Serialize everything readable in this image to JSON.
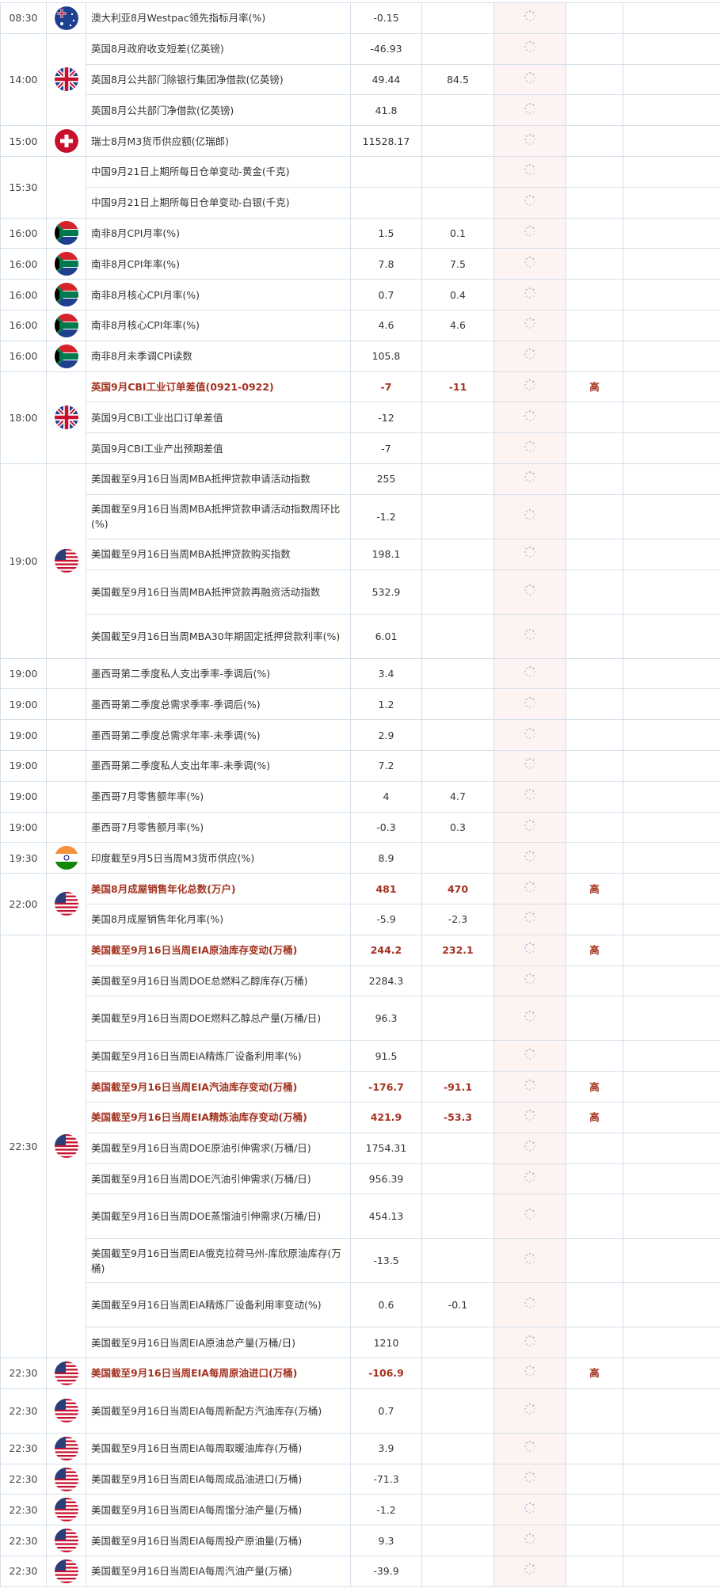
{
  "colors": {
    "highlight": "#a3321f",
    "result_bg": "#fdf3f3",
    "border": "#d6dfea"
  },
  "groups": [
    {
      "time": "08:30",
      "flag": "australia",
      "rows": [
        {
          "name": "澳大利亚8月Westpac领先指标月率(%)",
          "previous": "-0.15",
          "forecast": "",
          "importance": ""
        }
      ]
    },
    {
      "time": "14:00",
      "flag": "uk",
      "rows": [
        {
          "name": "英国8月政府收支短差(亿英镑)",
          "previous": "-46.93",
          "forecast": "",
          "importance": ""
        },
        {
          "name": "英国8月公共部门除银行集团净借款(亿英镑)",
          "previous": "49.44",
          "forecast": "84.5",
          "importance": ""
        },
        {
          "name": "英国8月公共部门净借款(亿英镑)",
          "previous": "41.8",
          "forecast": "",
          "importance": ""
        }
      ]
    },
    {
      "time": "15:00",
      "flag": "switzerland",
      "rows": [
        {
          "name": "瑞士8月M3货币供应额(亿瑞郎)",
          "previous": "11528.17",
          "forecast": "",
          "importance": ""
        }
      ]
    },
    {
      "time": "15:30",
      "flag": "",
      "rows": [
        {
          "name": "中国9月21日上期所每日仓单变动-黄金(千克)",
          "previous": "",
          "forecast": "",
          "importance": ""
        },
        {
          "name": "中国9月21日上期所每日仓单变动-白银(千克)",
          "previous": "",
          "forecast": "",
          "importance": ""
        }
      ]
    },
    {
      "time": "16:00",
      "flag": "south-africa",
      "rows": [
        {
          "name": "南非8月CPI月率(%)",
          "previous": "1.5",
          "forecast": "0.1",
          "importance": ""
        }
      ]
    },
    {
      "time": "16:00",
      "flag": "south-africa",
      "rows": [
        {
          "name": "南非8月CPI年率(%)",
          "previous": "7.8",
          "forecast": "7.5",
          "importance": ""
        }
      ]
    },
    {
      "time": "16:00",
      "flag": "south-africa",
      "rows": [
        {
          "name": "南非8月核心CPI月率(%)",
          "previous": "0.7",
          "forecast": "0.4",
          "importance": ""
        }
      ]
    },
    {
      "time": "16:00",
      "flag": "south-africa",
      "rows": [
        {
          "name": "南非8月核心CPI年率(%)",
          "previous": "4.6",
          "forecast": "4.6",
          "importance": ""
        }
      ]
    },
    {
      "time": "16:00",
      "flag": "south-africa",
      "rows": [
        {
          "name": "南非8月未季调CPI读数",
          "previous": "105.8",
          "forecast": "",
          "importance": ""
        }
      ]
    },
    {
      "time": "18:00",
      "flag": "uk",
      "rows": [
        {
          "name": "英国9月CBI工业订单差值(0921-0922)",
          "previous": "-7",
          "forecast": "-11",
          "importance": "高"
        },
        {
          "name": "英国9月CBI工业出口订单差值",
          "previous": "-12",
          "forecast": "",
          "importance": ""
        },
        {
          "name": "英国9月CBI工业产出预期差值",
          "previous": "-7",
          "forecast": "",
          "importance": ""
        }
      ]
    },
    {
      "time": "19:00",
      "flag": "usa",
      "rows": [
        {
          "name": "美国截至9月16日当周MBA抵押贷款申请活动指数",
          "previous": "255",
          "forecast": "",
          "importance": ""
        },
        {
          "name": "美国截至9月16日当周MBA抵押贷款申请活动指数周环比(%)",
          "previous": "-1.2",
          "forecast": "",
          "importance": "",
          "double": true
        },
        {
          "name": "美国截至9月16日当周MBA抵押贷款购买指数",
          "previous": "198.1",
          "forecast": "",
          "importance": ""
        },
        {
          "name": "美国截至9月16日当周MBA抵押贷款再融资活动指数",
          "previous": "532.9",
          "forecast": "",
          "importance": "",
          "double": true
        },
        {
          "name": "美国截至9月16日当周MBA30年期固定抵押贷款利率(%)",
          "previous": "6.01",
          "forecast": "",
          "importance": "",
          "double": true
        }
      ]
    },
    {
      "time": "19:00",
      "flag": "",
      "rows": [
        {
          "name": "墨西哥第二季度私人支出季率-季调后(%)",
          "previous": "3.4",
          "forecast": "",
          "importance": ""
        }
      ]
    },
    {
      "time": "19:00",
      "flag": "",
      "rows": [
        {
          "name": "墨西哥第二季度总需求季率-季调后(%)",
          "previous": "1.2",
          "forecast": "",
          "importance": ""
        }
      ]
    },
    {
      "time": "19:00",
      "flag": "",
      "rows": [
        {
          "name": "墨西哥第二季度总需求年率-未季调(%)",
          "previous": "2.9",
          "forecast": "",
          "importance": ""
        }
      ]
    },
    {
      "time": "19:00",
      "flag": "",
      "rows": [
        {
          "name": "墨西哥第二季度私人支出年率-未季调(%)",
          "previous": "7.2",
          "forecast": "",
          "importance": ""
        }
      ]
    },
    {
      "time": "19:00",
      "flag": "",
      "rows": [
        {
          "name": "墨西哥7月零售额年率(%)",
          "previous": "4",
          "forecast": "4.7",
          "importance": ""
        }
      ]
    },
    {
      "time": "19:00",
      "flag": "",
      "rows": [
        {
          "name": "墨西哥7月零售额月率(%)",
          "previous": "-0.3",
          "forecast": "0.3",
          "importance": ""
        }
      ]
    },
    {
      "time": "19:30",
      "flag": "india",
      "rows": [
        {
          "name": "印度截至9月5日当周M3货币供应(%)",
          "previous": "8.9",
          "forecast": "",
          "importance": ""
        }
      ]
    },
    {
      "time": "22:00",
      "flag": "usa",
      "rows": [
        {
          "name": "美国8月成屋销售年化总数(万户)",
          "previous": "481",
          "forecast": "470",
          "importance": "高"
        },
        {
          "name": "美国8月成屋销售年化月率(%)",
          "previous": "-5.9",
          "forecast": "-2.3",
          "importance": ""
        }
      ]
    },
    {
      "time": "22:30",
      "flag": "usa",
      "rows": [
        {
          "name": "美国截至9月16日当周EIA原油库存变动(万桶)",
          "previous": "244.2",
          "forecast": "232.1",
          "importance": "高"
        },
        {
          "name": "美国截至9月16日当周DOE总燃料乙醇库存(万桶)",
          "previous": "2284.3",
          "forecast": "",
          "importance": ""
        },
        {
          "name": "美国截至9月16日当周DOE燃料乙醇总产量(万桶/日)",
          "previous": "96.3",
          "forecast": "",
          "importance": "",
          "double": true
        },
        {
          "name": "美国截至9月16日当周EIA精炼厂设备利用率(%)",
          "previous": "91.5",
          "forecast": "",
          "importance": ""
        },
        {
          "name": "美国截至9月16日当周EIA汽油库存变动(万桶)",
          "previous": "-176.7",
          "forecast": "-91.1",
          "importance": "高"
        },
        {
          "name": "美国截至9月16日当周EIA精炼油库存变动(万桶)",
          "previous": "421.9",
          "forecast": "-53.3",
          "importance": "高"
        },
        {
          "name": "美国截至9月16日当周DOE原油引伸需求(万桶/日)",
          "previous": "1754.31",
          "forecast": "",
          "importance": ""
        },
        {
          "name": "美国截至9月16日当周DOE汽油引伸需求(万桶/日)",
          "previous": "956.39",
          "forecast": "",
          "importance": ""
        },
        {
          "name": "美国截至9月16日当周DOE蒸馏油引伸需求(万桶/日)",
          "previous": "454.13",
          "forecast": "",
          "importance": "",
          "double": true
        },
        {
          "name": "美国截至9月16日当周EIA俄克拉荷马州-库欣原油库存(万桶)",
          "previous": "-13.5",
          "forecast": "",
          "importance": "",
          "double": true
        },
        {
          "name": "美国截至9月16日当周EIA精炼厂设备利用率变动(%)",
          "previous": "0.6",
          "forecast": "-0.1",
          "importance": "",
          "double": true
        },
        {
          "name": "美国截至9月16日当周EIA原油总产量(万桶/日)",
          "previous": "1210",
          "forecast": "",
          "importance": ""
        }
      ]
    },
    {
      "time": "22:30",
      "flag": "usa",
      "rows": [
        {
          "name": "美国截至9月16日当周EIA每周原油进口(万桶)",
          "previous": "-106.9",
          "forecast": "",
          "importance": "高"
        }
      ]
    },
    {
      "time": "22:30",
      "flag": "usa",
      "rows": [
        {
          "name": "美国截至9月16日当周EIA每周新配方汽油库存(万桶)",
          "previous": "0.7",
          "forecast": "",
          "importance": "",
          "double": true
        }
      ]
    },
    {
      "time": "22:30",
      "flag": "usa",
      "rows": [
        {
          "name": "美国截至9月16日当周EIA每周取暖油库存(万桶)",
          "previous": "3.9",
          "forecast": "",
          "importance": ""
        }
      ]
    },
    {
      "time": "22:30",
      "flag": "usa",
      "rows": [
        {
          "name": "美国截至9月16日当周EIA每周成品油进口(万桶)",
          "previous": "-71.3",
          "forecast": "",
          "importance": ""
        }
      ]
    },
    {
      "time": "22:30",
      "flag": "usa",
      "rows": [
        {
          "name": "美国截至9月16日当周EIA每周馏分油产量(万桶)",
          "previous": "-1.2",
          "forecast": "",
          "importance": ""
        }
      ]
    },
    {
      "time": "22:30",
      "flag": "usa",
      "rows": [
        {
          "name": "美国截至9月16日当周EIA每周投产原油量(万桶)",
          "previous": "9.3",
          "forecast": "",
          "importance": ""
        }
      ]
    },
    {
      "time": "22:30",
      "flag": "usa",
      "rows": [
        {
          "name": "美国截至9月16日当周EIA每周汽油产量(万桶)",
          "previous": "-39.9",
          "forecast": "",
          "importance": ""
        }
      ]
    }
  ]
}
